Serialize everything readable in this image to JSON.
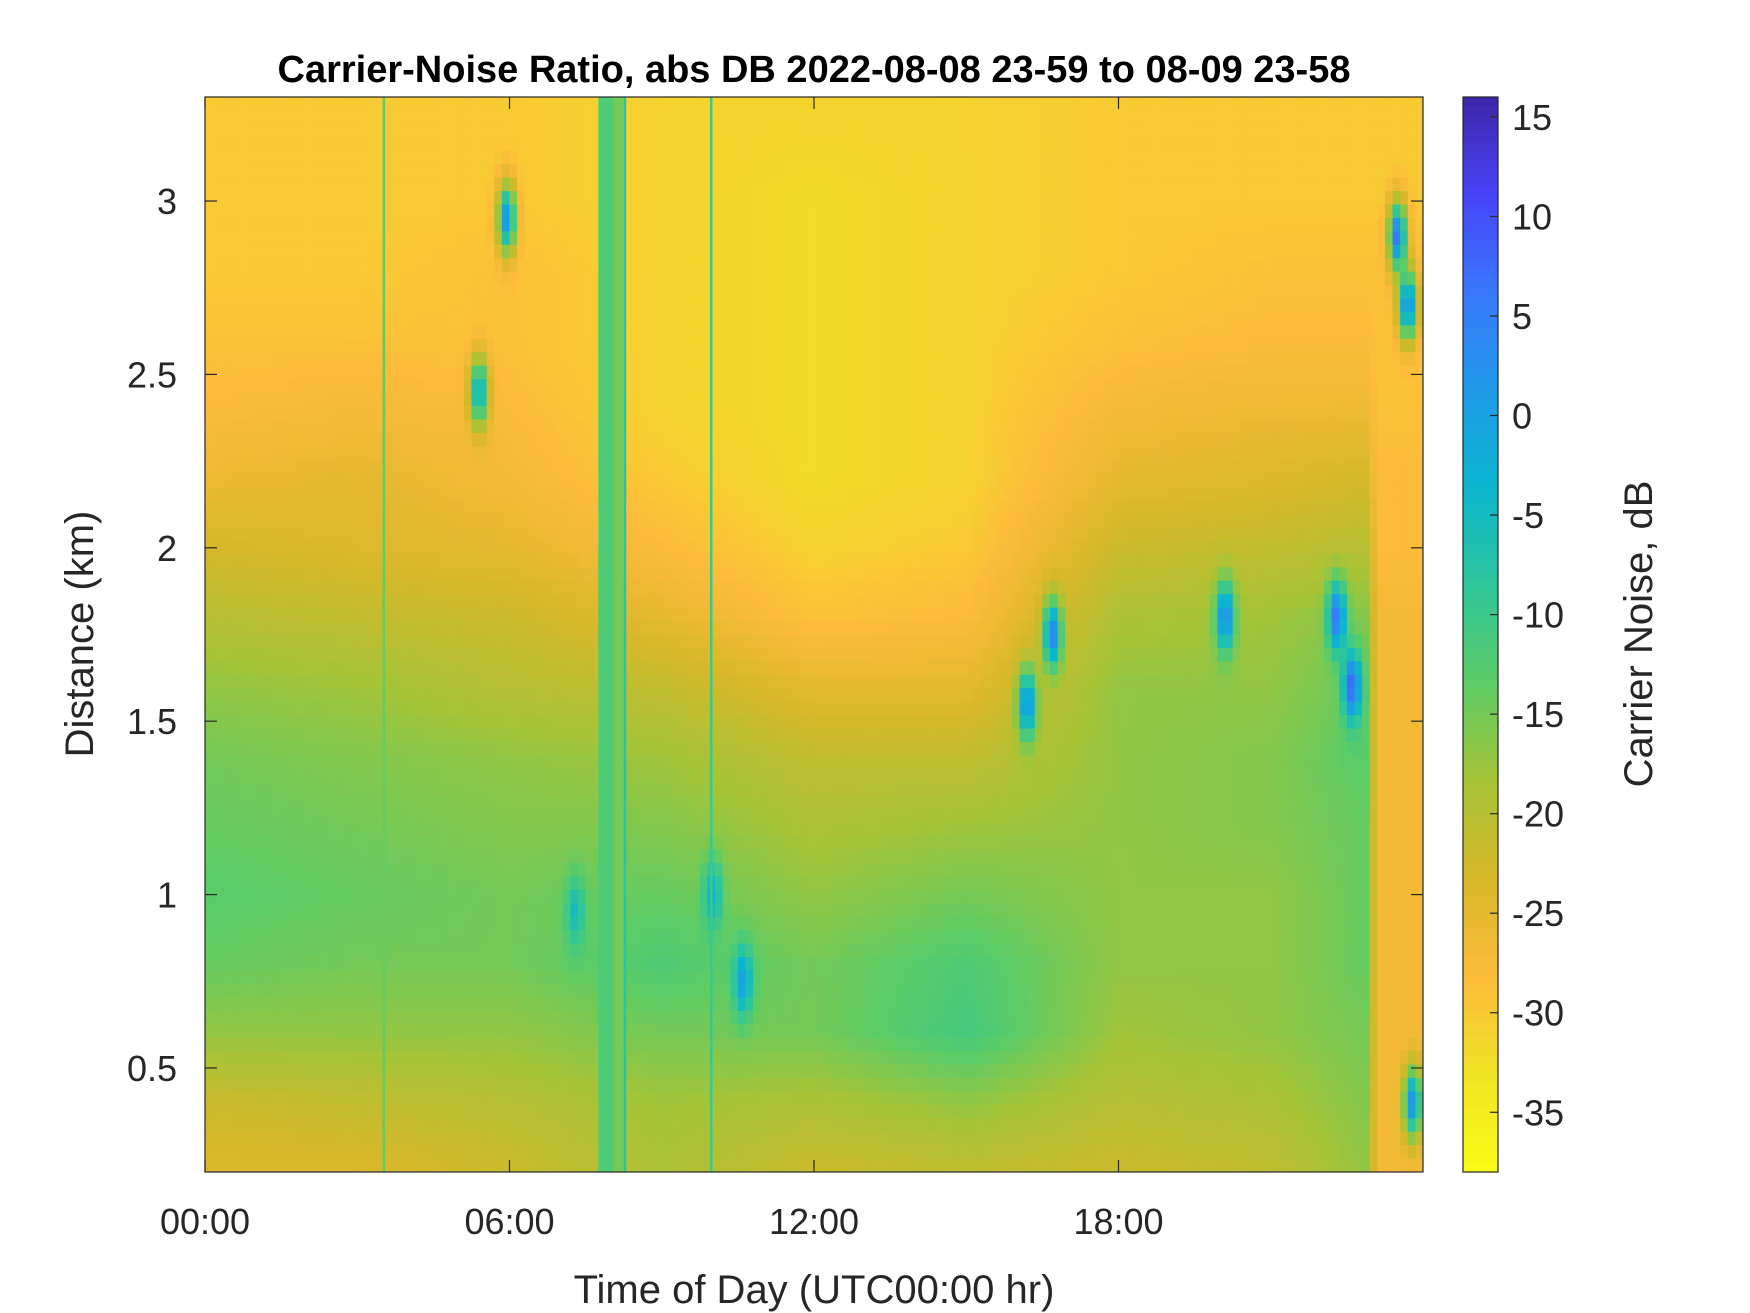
{
  "chart_data": {
    "type": "heatmap",
    "title": "Carrier-Noise Ratio, abs DB 2022-08-08 23-59 to 08-09 23-58",
    "xlabel": "Time of Day (UTC00:00 hr)",
    "ylabel": "Distance (km)",
    "colorbar_label": "Carrier Noise, dB",
    "xlim": [
      0,
      24
    ],
    "ylim": [
      0.2,
      3.3
    ],
    "clim": [
      -38,
      16
    ],
    "x_ticks": [
      {
        "value": 0,
        "label": "00:00"
      },
      {
        "value": 6,
        "label": "06:00"
      },
      {
        "value": 12,
        "label": "12:00"
      },
      {
        "value": 18,
        "label": "18:00"
      }
    ],
    "y_ticks": [
      {
        "value": 0.5,
        "label": "0.5"
      },
      {
        "value": 1,
        "label": "1"
      },
      {
        "value": 1.5,
        "label": "1.5"
      },
      {
        "value": 2,
        "label": "2"
      },
      {
        "value": 2.5,
        "label": "2.5"
      },
      {
        "value": 3,
        "label": "3"
      }
    ],
    "colorbar_ticks": [
      {
        "value": 15,
        "label": "15"
      },
      {
        "value": 10,
        "label": "10"
      },
      {
        "value": 5,
        "label": "5"
      },
      {
        "value": 0,
        "label": "0"
      },
      {
        "value": -5,
        "label": "-5"
      },
      {
        "value": -10,
        "label": "-10"
      },
      {
        "value": -15,
        "label": "-15"
      },
      {
        "value": -20,
        "label": "-20"
      },
      {
        "value": -25,
        "label": "-25"
      },
      {
        "value": -30,
        "label": "-30"
      },
      {
        "value": -35,
        "label": "-35"
      }
    ],
    "colormap": [
      "#3e26a8",
      "#4743f8",
      "#3a78fd",
      "#1f9ae8",
      "#0bb6cf",
      "#2ec69a",
      "#5dcc66",
      "#a6c336",
      "#d8b82a",
      "#fdbb3b",
      "#f0e425",
      "#f9fb15"
    ],
    "field": {
      "distance_km": [
        0.2,
        0.4,
        0.6,
        0.8,
        1.0,
        1.2,
        1.4,
        1.6,
        1.8,
        2.0,
        2.2,
        2.4,
        2.6,
        2.8,
        3.0,
        3.3
      ],
      "time_hr": [
        0,
        3,
        6,
        9,
        12,
        15,
        18,
        21,
        22.9,
        23.1,
        24
      ],
      "values_db": [
        [
          -24,
          -24,
          -22,
          -19,
          -22,
          -21,
          -22,
          -21,
          -17,
          -27,
          -27
        ],
        [
          -22,
          -21,
          -20,
          -18,
          -19,
          -17,
          -20,
          -19,
          -16,
          -27,
          -27
        ],
        [
          -17,
          -17,
          -17,
          -15,
          -15,
          -11,
          -18,
          -17,
          -15,
          -27,
          -27
        ],
        [
          -14,
          -15,
          -15,
          -12,
          -15,
          -12,
          -17,
          -17,
          -14,
          -27,
          -27
        ],
        [
          -13,
          -14,
          -15,
          -14,
          -17,
          -15,
          -17,
          -17,
          -14,
          -27,
          -27
        ],
        [
          -14,
          -15,
          -16,
          -16,
          -19,
          -18,
          -17,
          -16,
          -14,
          -27,
          -27
        ],
        [
          -15,
          -16,
          -17,
          -18,
          -21,
          -21,
          -17,
          -16,
          -13,
          -27,
          -27
        ],
        [
          -17,
          -18,
          -20,
          -21,
          -25,
          -25,
          -17,
          -17,
          -14,
          -27,
          -27
        ],
        [
          -20,
          -21,
          -22,
          -25,
          -29,
          -28,
          -19,
          -18,
          -16,
          -27,
          -27
        ],
        [
          -23,
          -24,
          -25,
          -28,
          -31,
          -30,
          -22,
          -21,
          -20,
          -28,
          -28
        ],
        [
          -26,
          -25,
          -27,
          -30,
          -32,
          -31,
          -25,
          -24,
          -23,
          -28,
          -28
        ],
        [
          -28,
          -27,
          -28,
          -31,
          -32,
          -31,
          -27,
          -26,
          -26,
          -29,
          -29
        ],
        [
          -29,
          -29,
          -29,
          -31,
          -32,
          -31,
          -29,
          -28,
          -28,
          -29,
          -29
        ],
        [
          -30,
          -30,
          -29,
          -31,
          -32,
          -31,
          -30,
          -29,
          -29,
          -29,
          -29
        ],
        [
          -30,
          -30,
          -30,
          -31,
          -32,
          -31,
          -30,
          -30,
          -30,
          -30,
          -30
        ],
        [
          -30,
          -30,
          -30,
          -31,
          -31,
          -31,
          -30,
          -30,
          -30,
          -30,
          -30
        ]
      ]
    },
    "streaks": [
      {
        "t_start": 3.5,
        "t_end": 3.55,
        "value_db": -14
      },
      {
        "t_start": 7.75,
        "t_end": 8.05,
        "value_db": -12
      },
      {
        "t_start": 8.05,
        "t_end": 8.25,
        "value_db": -15
      },
      {
        "t_start": 8.25,
        "t_end": 8.3,
        "value_db": -8
      },
      {
        "t_start": 9.95,
        "t_end": 10.0,
        "value_db": -10
      }
    ],
    "blobs": [
      {
        "t": 5.95,
        "d": 2.95,
        "value_db": 2
      },
      {
        "t": 5.4,
        "d": 2.45,
        "value_db": -2
      },
      {
        "t": 7.3,
        "d": 0.95,
        "value_db": -5
      },
      {
        "t": 10.0,
        "d": 1.0,
        "value_db": -3
      },
      {
        "t": 10.6,
        "d": 0.75,
        "value_db": 0
      },
      {
        "t": 16.2,
        "d": 1.55,
        "value_db": 3
      },
      {
        "t": 16.7,
        "d": 1.75,
        "value_db": 4
      },
      {
        "t": 20.1,
        "d": 1.8,
        "value_db": 4
      },
      {
        "t": 22.3,
        "d": 1.8,
        "value_db": 6
      },
      {
        "t": 22.6,
        "d": 1.6,
        "value_db": 8
      },
      {
        "t": 23.5,
        "d": 2.9,
        "value_db": 6
      },
      {
        "t": 23.7,
        "d": 2.7,
        "value_db": 4
      },
      {
        "t": 23.8,
        "d": 0.4,
        "value_db": 2
      }
    ]
  }
}
